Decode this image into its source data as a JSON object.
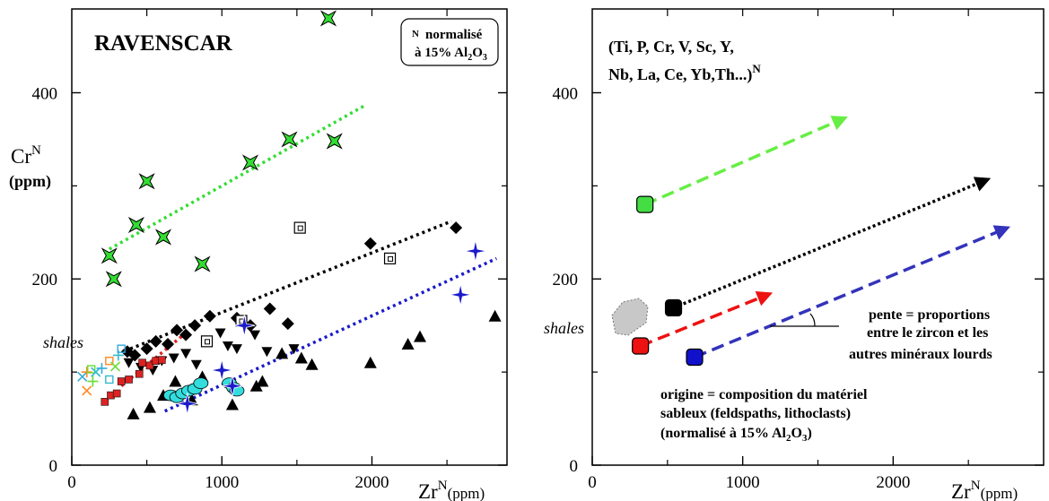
{
  "left_panel": {
    "title": "RAVENSCAR",
    "note_line1": "normalisé",
    "note_line2": "à 15% Al",
    "note_sup": "N",
    "note_sub": "2",
    "note_sub_after": "O",
    "note_sub2": "3",
    "y_label_main": "Cr",
    "y_label_sup": "N",
    "y_label_unit": "(ppm)",
    "x_label_main": "Zr",
    "x_label_sup": "N",
    "x_label_unit": "(ppm)",
    "shales_label": "shales"
  },
  "right_panel": {
    "elements_line1": "(Ti, P, Cr, V, Sc, Y,",
    "elements_line2": "Nb, La, Ce, Yb,Th...)",
    "elements_sup": "N",
    "slope_line1": "pente = proportions",
    "slope_line2": "entre le zircon et les",
    "slope_line3": "autres minéraux lourds",
    "origin_line1": "origine = composition du matériel",
    "origin_line2": "sableux (feldspaths, lithoclasts)",
    "origin_line3": "(normalisé à 15% Al",
    "origin_sub1": "2",
    "origin_mid": "O",
    "origin_sub2": "3",
    "origin_end": ")",
    "x_label_main": "Zr",
    "x_label_sup": "N",
    "x_label_unit": "(ppm)",
    "shales_label": "shales"
  },
  "chart_data": [
    {
      "type": "scatter",
      "title": "RAVENSCAR",
      "xlabel": "ZrN (ppm)",
      "ylabel": "CrN (ppm)",
      "xlim": [
        0,
        2900
      ],
      "ylim": [
        0,
        490
      ],
      "x_ticks": [
        0,
        1000,
        2000
      ],
      "y_ticks": [
        0,
        200,
        400
      ],
      "series": [
        {
          "marker": "green-star",
          "color": "#33dd33",
          "points": [
            [
              250,
              225
            ],
            [
              280,
              200
            ],
            [
              430,
              258
            ],
            [
              500,
              305
            ],
            [
              610,
              245
            ],
            [
              870,
              216
            ],
            [
              1190,
              325
            ],
            [
              1450,
              350
            ],
            [
              1750,
              348
            ],
            [
              1710,
              480
            ]
          ]
        },
        {
          "marker": "black-diamond",
          "color": "#000000",
          "points": [
            [
              370,
              122
            ],
            [
              420,
              118
            ],
            [
              500,
              125
            ],
            [
              560,
              133
            ],
            [
              640,
              130
            ],
            [
              700,
              145
            ],
            [
              760,
              140
            ],
            [
              820,
              150
            ],
            [
              920,
              160
            ],
            [
              1100,
              158
            ],
            [
              1190,
              150
            ],
            [
              1320,
              168
            ],
            [
              1440,
              152
            ],
            [
              1990,
              238
            ],
            [
              2560,
              255
            ]
          ]
        },
        {
          "marker": "black-triangle-down",
          "color": "#000000",
          "points": [
            [
              380,
              110
            ],
            [
              460,
              105
            ],
            [
              540,
              102
            ],
            [
              600,
              112
            ],
            [
              680,
              115
            ],
            [
              760,
              120
            ],
            [
              830,
              108
            ],
            [
              990,
              142
            ],
            [
              1040,
              128
            ],
            [
              1100,
              125
            ],
            [
              1220,
              140
            ],
            [
              1300,
              122
            ],
            [
              1480,
              125
            ]
          ]
        },
        {
          "marker": "black-triangle-up",
          "color": "#000000",
          "points": [
            [
              410,
              55
            ],
            [
              520,
              62
            ],
            [
              610,
              75
            ],
            [
              690,
              90
            ],
            [
              800,
              70
            ],
            [
              870,
              95
            ],
            [
              1070,
              65
            ],
            [
              1230,
              85
            ],
            [
              1270,
              90
            ],
            [
              1400,
              120
            ],
            [
              1530,
              115
            ],
            [
              1600,
              108
            ],
            [
              1990,
              110
            ],
            [
              2240,
              130
            ],
            [
              2320,
              138
            ],
            [
              2820,
              160
            ]
          ]
        },
        {
          "marker": "open-square",
          "color": "#000000",
          "points": [
            [
              900,
              133
            ],
            [
              1130,
              155
            ],
            [
              1520,
              255
            ],
            [
              2120,
              222
            ]
          ]
        },
        {
          "marker": "red-square",
          "color": "#dd2222",
          "points": [
            [
              220,
              68
            ],
            [
              260,
              75
            ],
            [
              300,
              77
            ],
            [
              330,
              90
            ],
            [
              380,
              92
            ],
            [
              450,
              98
            ],
            [
              470,
              110
            ],
            [
              520,
              107
            ],
            [
              560,
              112
            ],
            [
              600,
              113
            ]
          ]
        },
        {
          "marker": "cyan-circle",
          "color": "#33dddd",
          "points": [
            [
              660,
              75
            ],
            [
              700,
              73
            ],
            [
              740,
              77
            ],
            [
              780,
              80
            ],
            [
              820,
              82
            ],
            [
              860,
              88
            ],
            [
              1050,
              88
            ],
            [
              1080,
              83
            ],
            [
              1100,
              80
            ]
          ]
        },
        {
          "marker": "blue-star",
          "color": "#1a1acc",
          "points": [
            [
              770,
              66
            ],
            [
              1000,
              102
            ],
            [
              1070,
              85
            ],
            [
              1150,
              150
            ],
            [
              2590,
              183
            ],
            [
              2690,
              230
            ]
          ]
        },
        {
          "marker": "shales-cluster",
          "color": "#33aadd",
          "points": [
            [
              70,
              95
            ],
            [
              100,
              100
            ],
            [
              130,
              103
            ],
            [
              160,
              100
            ],
            [
              200,
              104
            ],
            [
              250,
              112
            ],
            [
              290,
              106
            ],
            [
              310,
              118
            ],
            [
              330,
              125
            ],
            [
              100,
              80
            ],
            [
              140,
              90
            ],
            [
              250,
              92
            ]
          ]
        }
      ],
      "trend_lines": [
        {
          "color": "#33dd33",
          "from": [
            250,
            232
          ],
          "to": [
            1960,
            387
          ]
        },
        {
          "color": "#000000",
          "from": [
            390,
            125
          ],
          "to": [
            2530,
            262
          ]
        },
        {
          "color": "#dd2222",
          "from": [
            330,
            85
          ],
          "to": [
            760,
            142
          ]
        },
        {
          "color": "#1a1acc",
          "from": [
            620,
            58
          ],
          "to": [
            2830,
            222
          ]
        }
      ]
    },
    {
      "type": "scatter",
      "xlabel": "ZrN (ppm)",
      "xlim": [
        0,
        3000
      ],
      "ylim": [
        0,
        490
      ],
      "x_ticks": [
        0,
        1000,
        2000
      ],
      "y_ticks": [
        0,
        200,
        400
      ],
      "origins": [
        {
          "color": "#44dd44",
          "x": 350,
          "y": 280
        },
        {
          "color": "#000000",
          "x": 540,
          "y": 169
        },
        {
          "color": "#ee1111",
          "x": 320,
          "y": 128
        },
        {
          "color": "#1111cc",
          "x": 680,
          "y": 116
        }
      ],
      "arrows": [
        {
          "color": "#66ee44",
          "style": "dashed",
          "from": [
            350,
            280
          ],
          "to": [
            1680,
            373
          ]
        },
        {
          "color": "#000000",
          "style": "dotted",
          "from": [
            540,
            169
          ],
          "to": [
            2630,
            307
          ]
        },
        {
          "color": "#ee1111",
          "style": "dashed",
          "from": [
            320,
            128
          ],
          "to": [
            1180,
            184
          ]
        },
        {
          "color": "#3333bb",
          "style": "dashed",
          "from": [
            680,
            116
          ],
          "to": [
            2760,
            255
          ]
        }
      ],
      "shales_region": {
        "x": 210,
        "y": 155
      }
    }
  ]
}
